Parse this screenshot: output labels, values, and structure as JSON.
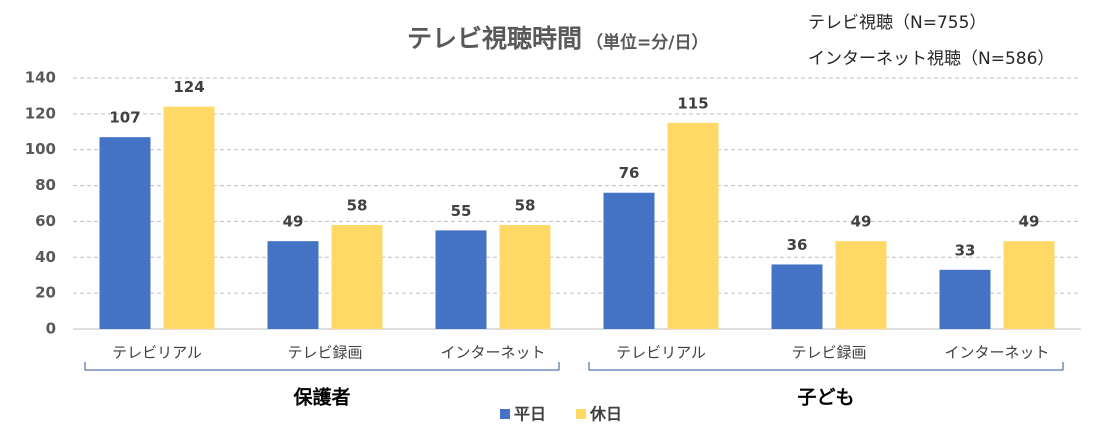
{
  "chart_data": {
    "type": "bar",
    "title": "テレビ視聴時間",
    "subtitle": "（単位=分/日）",
    "annotations": [
      "テレビ視聴（N=755）",
      "インターネット視聴（N=586）"
    ],
    "categories": [
      "テレビリアル",
      "テレビ録画",
      "インターネット",
      "テレビリアル",
      "テレビ録画",
      "インターネット"
    ],
    "groups": [
      "保護者",
      "子ども"
    ],
    "series": [
      {
        "name": "平日",
        "color": "#4472c4",
        "values": [
          107,
          49,
          55,
          76,
          36,
          33
        ]
      },
      {
        "name": "休日",
        "color": "#ffd966",
        "values": [
          124,
          58,
          58,
          115,
          49,
          49
        ]
      }
    ],
    "ylim": [
      0,
      140
    ],
    "yticks": [
      0,
      20,
      40,
      60,
      80,
      100,
      120,
      140
    ],
    "grid": true,
    "legend": "bottom"
  }
}
